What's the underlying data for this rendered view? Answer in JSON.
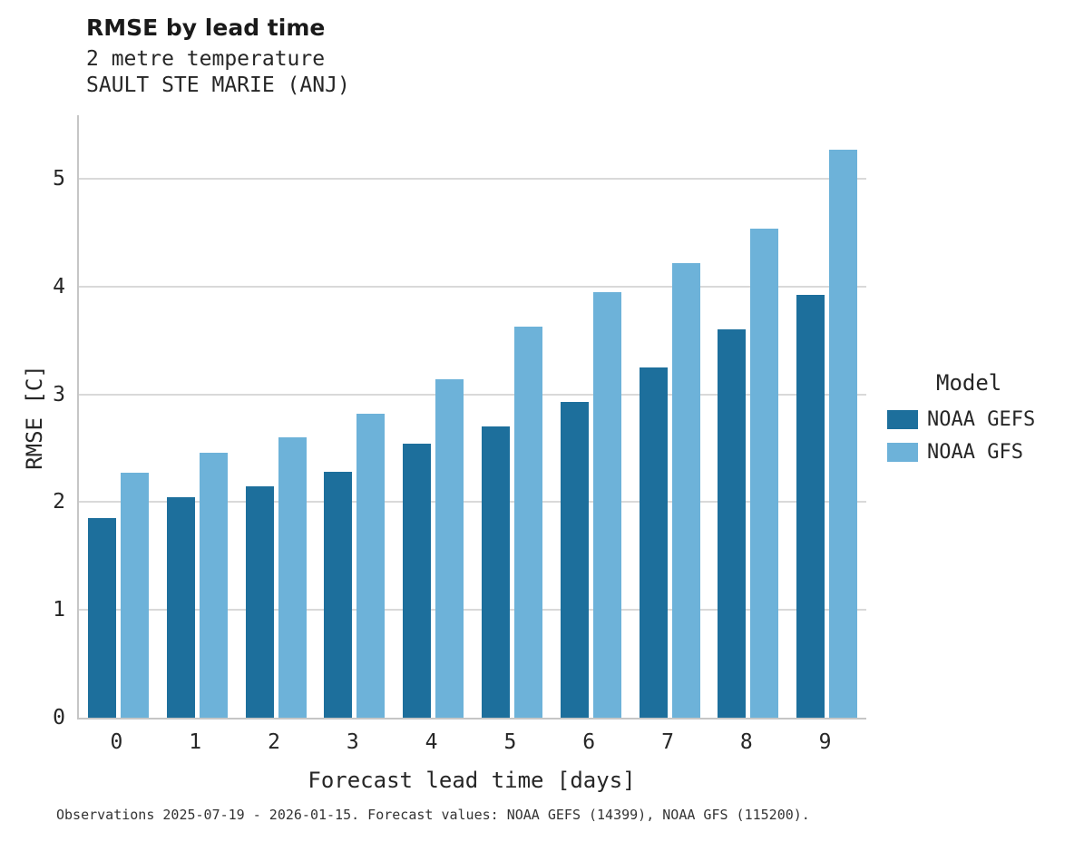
{
  "header": {
    "title": "RMSE by lead time",
    "subtitle1": "2 metre temperature",
    "subtitle2": "SAULT STE MARIE (ANJ)"
  },
  "legend": {
    "title": "Model"
  },
  "caption": "Observations 2025-07-19 - 2026-01-15. Forecast values: NOAA GEFS (14399), NOAA GFS (115200).",
  "chart_data": {
    "type": "bar",
    "title": "RMSE by lead time",
    "subtitle": [
      "2 metre temperature",
      "SAULT STE MARIE (ANJ)"
    ],
    "xlabel": "Forecast lead time [days]",
    "ylabel": "RMSE [C]",
    "categories": [
      "0",
      "1",
      "2",
      "3",
      "4",
      "5",
      "6",
      "7",
      "8",
      "9"
    ],
    "series": [
      {
        "name": "NOAA GEFS",
        "color": "#1d6f9c",
        "values": [
          1.85,
          2.05,
          2.15,
          2.28,
          2.54,
          2.7,
          2.93,
          3.25,
          3.6,
          3.92
        ]
      },
      {
        "name": "NOAA GFS",
        "color": "#6db2d9",
        "values": [
          2.27,
          2.46,
          2.6,
          2.82,
          3.14,
          3.63,
          3.95,
          4.22,
          4.54,
          5.27
        ]
      }
    ],
    "yticks": [
      0,
      1,
      2,
      3,
      4,
      5
    ],
    "ylim": [
      0,
      5.59
    ],
    "grid": "horizontal",
    "legend_title": "Model",
    "legend_position": "right"
  }
}
